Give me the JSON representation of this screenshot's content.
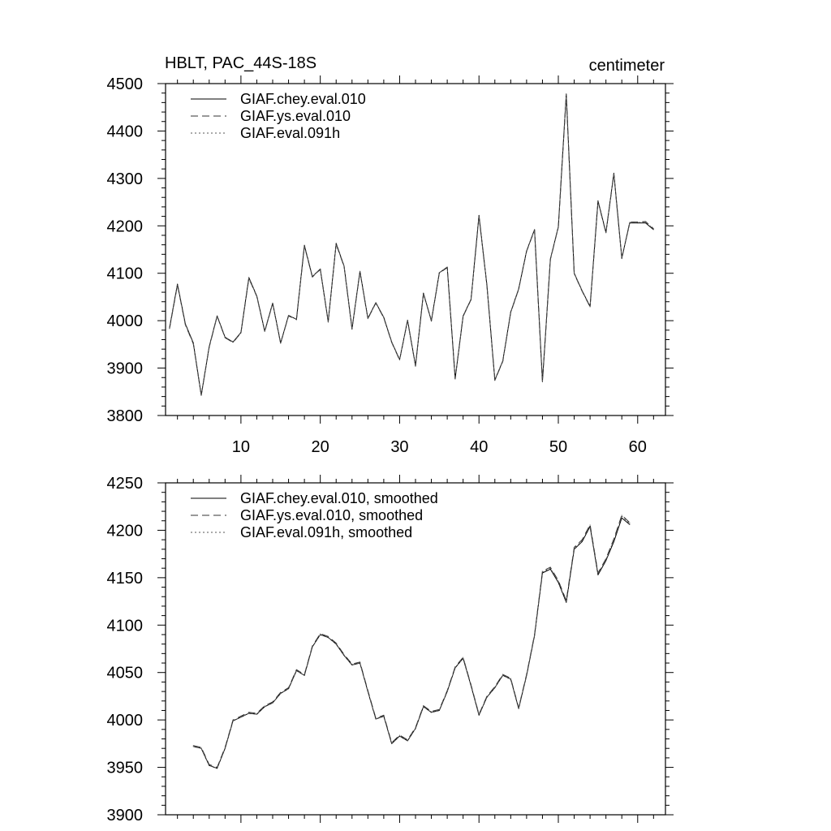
{
  "header": {
    "left_title": "HBLT, PAC_44S-18S",
    "right_title": "centimeter"
  },
  "chart_data": [
    {
      "type": "line",
      "x": [
        1,
        2,
        3,
        4,
        5,
        6,
        7,
        8,
        9,
        10,
        11,
        12,
        13,
        14,
        15,
        16,
        17,
        18,
        19,
        20,
        21,
        22,
        23,
        24,
        25,
        26,
        27,
        28,
        29,
        30,
        31,
        32,
        33,
        34,
        35,
        36,
        37,
        38,
        39,
        40,
        41,
        42,
        43,
        44,
        45,
        46,
        47,
        48,
        49,
        50,
        51,
        52,
        53,
        54,
        55,
        56,
        57,
        58,
        59,
        60,
        61,
        62
      ],
      "xlim": [
        0.5,
        63.5
      ],
      "ylim": [
        3800,
        4500
      ],
      "xticks": [
        10,
        20,
        30,
        40,
        50,
        60
      ],
      "xtick_labels": [
        "10",
        "20",
        "30",
        "40",
        "50",
        "60"
      ],
      "yticks": [
        3800,
        3900,
        4000,
        4100,
        4200,
        4300,
        4400,
        4500
      ],
      "ytick_labels": [
        "3800",
        "3900",
        "4000",
        "4100",
        "4200",
        "4300",
        "4400",
        "4500"
      ],
      "legend_position": "top-left",
      "grid": false,
      "series": [
        {
          "name": "GIAF.chey.eval.010",
          "dash": "solid",
          "values": [
            3985,
            4077,
            3993,
            3953,
            3843,
            3945,
            4010,
            3965,
            3955,
            3975,
            4091,
            4052,
            3978,
            4037,
            3953,
            4011,
            4003,
            4159,
            4093,
            4109,
            3998,
            4163,
            4115,
            3983,
            4104,
            4005,
            4038,
            4007,
            3955,
            3918,
            4001,
            3905,
            4058,
            4000,
            4101,
            4113,
            3878,
            4010,
            4045,
            4222,
            4075,
            3875,
            3915,
            4018,
            4067,
            4147,
            4192,
            3872,
            4130,
            4198,
            4478,
            4100,
            4063,
            4030,
            4253,
            4186,
            4311,
            4132,
            4206,
            4206,
            4206,
            4192
          ]
        },
        {
          "name": "GIAF.ys.eval.010",
          "dash": "long-dash",
          "values": [
            3983,
            4075,
            3991,
            3951,
            3842,
            3944,
            4009,
            3964,
            3954,
            3974,
            4089,
            4051,
            3977,
            4036,
            3952,
            4010,
            4002,
            4157,
            4092,
            4108,
            3997,
            4161,
            4114,
            3982,
            4103,
            4004,
            4037,
            4006,
            3954,
            3917,
            4000,
            3904,
            4057,
            3999,
            4100,
            4112,
            3877,
            4009,
            4044,
            4220,
            4074,
            3874,
            3914,
            4017,
            4066,
            4146,
            4191,
            3871,
            4129,
            4197,
            4475,
            4099,
            4062,
            4029,
            4251,
            4185,
            4309,
            4131,
            4208,
            4208,
            4209,
            4194
          ]
        },
        {
          "name": "GIAF.eval.091h",
          "dash": "dotted",
          "values": [
            3984,
            4076,
            3992,
            3952,
            3843,
            3945,
            4010,
            3965,
            3955,
            3975,
            4090,
            4052,
            3978,
            4037,
            3953,
            4011,
            4003,
            4158,
            4093,
            4109,
            3998,
            4162,
            4115,
            3983,
            4104,
            4005,
            4038,
            4007,
            3955,
            3918,
            4001,
            3905,
            4058,
            4000,
            4101,
            4113,
            3878,
            4010,
            4045,
            4221,
            4075,
            3875,
            3915,
            4018,
            4067,
            4147,
            4192,
            3872,
            4130,
            4198,
            4477,
            4100,
            4063,
            4030,
            4252,
            4186,
            4310,
            4132,
            4207,
            4207,
            4208,
            4193
          ]
        }
      ]
    },
    {
      "type": "line",
      "x": [
        4,
        5,
        6,
        7,
        8,
        9,
        10,
        11,
        12,
        13,
        14,
        15,
        16,
        17,
        18,
        19,
        20,
        21,
        22,
        23,
        24,
        25,
        26,
        27,
        28,
        29,
        30,
        31,
        32,
        33,
        34,
        35,
        36,
        37,
        38,
        39,
        40,
        41,
        42,
        43,
        44,
        45,
        46,
        47,
        48,
        49,
        50,
        51,
        52,
        53,
        54,
        55,
        56,
        57,
        58,
        59
      ],
      "xlim": [
        0.5,
        63.5
      ],
      "ylim": [
        3900,
        4250
      ],
      "xticks": [
        10,
        20,
        30,
        40,
        50,
        60
      ],
      "xtick_labels": [],
      "yticks": [
        3900,
        3950,
        4000,
        4050,
        4100,
        4150,
        4200,
        4250
      ],
      "ytick_labels": [
        "3900",
        "3950",
        "4000",
        "4050",
        "4100",
        "4150",
        "4200",
        "4250"
      ],
      "legend_position": "top-left",
      "grid": false,
      "series": [
        {
          "name": "GIAF.chey.eval.010, smoothed",
          "dash": "solid",
          "values": [
            3972,
            3970,
            3952,
            3949,
            3970,
            3999,
            4003,
            4007,
            4006,
            4014,
            4018,
            4028,
            4033,
            4052,
            4047,
            4077,
            4090,
            4087,
            4080,
            4068,
            4058,
            4060,
            4030,
            4001,
            4004,
            3975,
            3983,
            3978,
            3991,
            4014,
            4008,
            4010,
            4030,
            4055,
            4065,
            4036,
            4005,
            4024,
            4034,
            4047,
            4043,
            4012,
            4047,
            4089,
            4155,
            4159,
            4145,
            4124,
            4180,
            4188,
            4204,
            4153,
            4168,
            4188,
            4213,
            4206
          ]
        },
        {
          "name": "GIAF.ys.eval.010, smoothed",
          "dash": "long-dash",
          "values": [
            3973,
            3971,
            3953,
            3950,
            3971,
            4000,
            4004,
            4008,
            4007,
            4015,
            4019,
            4029,
            4034,
            4053,
            4048,
            4078,
            4091,
            4088,
            4081,
            4069,
            4059,
            4061,
            4031,
            4002,
            4005,
            3976,
            3984,
            3979,
            3992,
            4015,
            4009,
            4011,
            4031,
            4056,
            4066,
            4037,
            4006,
            4025,
            4035,
            4048,
            4044,
            4013,
            4048,
            4090,
            4157,
            4161,
            4147,
            4126,
            4182,
            4190,
            4206,
            4155,
            4170,
            4191,
            4216,
            4208
          ]
        },
        {
          "name": "GIAF.eval.091h, smoothed",
          "dash": "dotted",
          "values": [
            3972,
            3970,
            3952,
            3949,
            3970,
            3999,
            4003,
            4007,
            4006,
            4014,
            4018,
            4028,
            4033,
            4052,
            4047,
            4077,
            4090,
            4087,
            4080,
            4068,
            4058,
            4060,
            4030,
            4001,
            4004,
            3975,
            3983,
            3978,
            3991,
            4014,
            4008,
            4010,
            4030,
            4055,
            4065,
            4036,
            4005,
            4024,
            4034,
            4047,
            4043,
            4012,
            4047,
            4089,
            4156,
            4160,
            4146,
            4125,
            4181,
            4189,
            4205,
            4154,
            4169,
            4190,
            4215,
            4207
          ]
        }
      ]
    }
  ]
}
